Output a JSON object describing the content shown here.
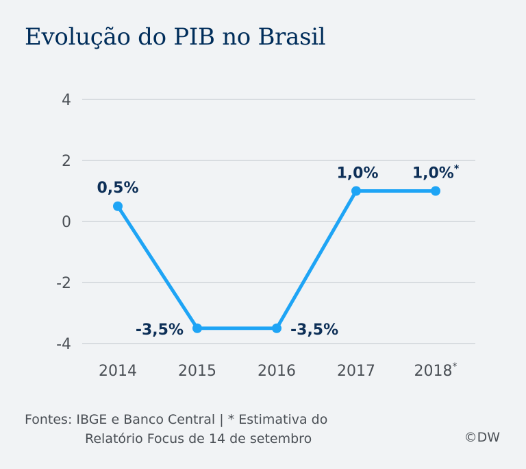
{
  "title": "Evolução do PIB no Brasil",
  "footer": {
    "line1": "Fontes: IBGE e Banco Central | * Estimativa do",
    "line2": "Relatório Focus de 14 de setembro",
    "copyright": "©DW"
  },
  "colors": {
    "line": "#1ea4f5",
    "title": "#002d5a",
    "label": "#0d2f57",
    "grid": "#c9ced3",
    "axis_text": "#4a4f55",
    "background": "#f1f3f5"
  },
  "chart_data": {
    "type": "line",
    "title": "Evolução do PIB no Brasil",
    "categories": [
      "2014",
      "2015",
      "2016",
      "2017",
      "2018"
    ],
    "category_marks": [
      "",
      "",
      "",
      "",
      "*"
    ],
    "values": [
      0.5,
      -3.5,
      -3.5,
      1.0,
      1.0
    ],
    "data_labels": [
      "0,5%",
      "-3,5%",
      "-3,5%",
      "1,0%",
      "1,0%"
    ],
    "data_label_marks": [
      "",
      "",
      "",
      "",
      "*"
    ],
    "y_ticks": [
      4,
      2,
      0,
      -2,
      -4
    ],
    "y_tick_labels": [
      "4",
      "2",
      "0",
      "-2",
      "-4"
    ],
    "ylim": [
      -4,
      4
    ],
    "grid": true,
    "legend": "none"
  }
}
